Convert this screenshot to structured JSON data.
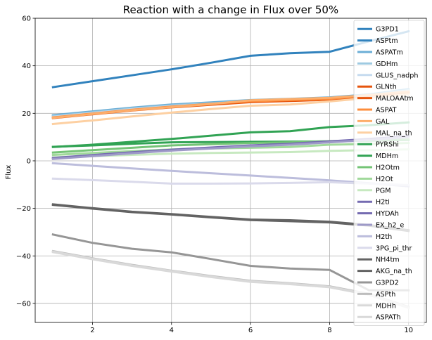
{
  "chart_data": {
    "type": "line",
    "title": "Reaction with a change in Flux over 50%",
    "xlabel": "",
    "ylabel": "Flux",
    "xlim": [
      0.55,
      10.45
    ],
    "ylim": [
      -68,
      60
    ],
    "xticks": [
      2,
      4,
      6,
      8,
      10
    ],
    "yticks": [
      -60,
      -40,
      -20,
      0,
      20,
      40,
      60
    ],
    "grid": true,
    "legend_position": "top-right",
    "x": [
      1,
      2,
      3,
      4,
      5,
      6,
      7,
      8,
      9,
      10
    ],
    "series": [
      {
        "name": "G3PD1",
        "color": "#3182bd",
        "values": [
          31,
          33.5,
          36,
          38.5,
          41.3,
          44.2,
          45.3,
          45.9,
          50.3,
          54.5
        ]
      },
      {
        "name": "ASPtm",
        "color": "#3182bd",
        "values": [
          19,
          20.6,
          22.2,
          23.5,
          24.4,
          25.4,
          25.9,
          26.5,
          27.8,
          30
        ]
      },
      {
        "name": "ASPATm",
        "color": "#6baed6",
        "values": [
          19.2,
          20.8,
          22.4,
          23.7,
          24.6,
          25.6,
          26.1,
          26.7,
          28,
          30.2
        ]
      },
      {
        "name": "GDHm",
        "color": "#9ecae1",
        "values": [
          18.8,
          20.4,
          22,
          23.3,
          24.2,
          25.2,
          25.7,
          26.3,
          27.6,
          29.8
        ]
      },
      {
        "name": "GLUS_nadph",
        "color": "#c6dbef",
        "values": [
          18.5,
          20.1,
          21.7,
          23,
          23.9,
          24.9,
          25.4,
          26,
          27.3,
          29.5
        ]
      },
      {
        "name": "GLNth",
        "color": "#e6550d",
        "values": [
          18.2,
          19.8,
          21.4,
          22.7,
          23.8,
          24.9,
          25.4,
          25.9,
          27.3,
          28.7
        ]
      },
      {
        "name": "MALOAAtm",
        "color": "#e6550d",
        "values": [
          18,
          19.6,
          21.2,
          22.5,
          23.6,
          24.7,
          25.2,
          25.7,
          27.1,
          28.5
        ]
      },
      {
        "name": "ASPAT",
        "color": "#fd8d3c",
        "values": [
          18.3,
          19.9,
          21.5,
          22.8,
          24,
          25.1,
          25.6,
          26.1,
          27.5,
          28.9
        ]
      },
      {
        "name": "GAL",
        "color": "#fdae6b",
        "values": [
          18.1,
          19.7,
          21.3,
          22.6,
          23.9,
          25.5,
          26,
          26.5,
          27.7,
          29.2
        ]
      },
      {
        "name": "MAL_na_th",
        "color": "#fdd0a2",
        "values": [
          15.5,
          17,
          18.7,
          20.3,
          21.8,
          23.2,
          23.7,
          25,
          26.5,
          28
        ]
      },
      {
        "name": "PYRShi",
        "color": "#31a354",
        "values": [
          5.8,
          6.8,
          8,
          9.2,
          10.6,
          12,
          12.5,
          14.2,
          15,
          16.2
        ]
      },
      {
        "name": "MDHm",
        "color": "#31a354",
        "values": [
          5.9,
          6.5,
          7.2,
          7.8,
          7.9,
          8,
          8.1,
          8.2,
          8.5,
          8.8
        ]
      },
      {
        "name": "H2Otm",
        "color": "#74c476",
        "values": [
          3.5,
          4.5,
          5.5,
          6.5,
          7,
          7.5,
          7.8,
          8.3,
          8.6,
          9
        ]
      },
      {
        "name": "H2Ot",
        "color": "#a1d99b",
        "values": [
          2.5,
          3.3,
          4.1,
          4.8,
          5.2,
          5.5,
          5.8,
          6.8,
          7.1,
          7.5
        ]
      },
      {
        "name": "PGM",
        "color": "#c7e9c0",
        "values": [
          1.5,
          2,
          2.5,
          3,
          3.3,
          3.5,
          3.7,
          4.2,
          4.5,
          4.8
        ]
      },
      {
        "name": "H2ti",
        "color": "#756bb1",
        "values": [
          1,
          2.2,
          3.4,
          4.5,
          5.4,
          6.3,
          7,
          8,
          9,
          10.2
        ]
      },
      {
        "name": "HYDAh",
        "color": "#756bb1",
        "values": [
          1.2,
          2.4,
          3.6,
          4.7,
          5.6,
          6.5,
          7.2,
          8.2,
          9.2,
          10.4
        ]
      },
      {
        "name": "EX_h2_e",
        "color": "#9e9ac8",
        "values": [
          0.8,
          2,
          3.2,
          4.3,
          5.2,
          6.1,
          6.8,
          7.8,
          8.8,
          10
        ]
      },
      {
        "name": "H2th",
        "color": "#bcbddc",
        "values": [
          -1,
          -2.1,
          -3.2,
          -4.2,
          -5.2,
          -6.2,
          -7.2,
          -8.2,
          -9.4,
          -10.7
        ]
      },
      {
        "name": "3PG_pi_thr",
        "color": "#dadaeb",
        "values": [
          -7.5,
          -8.1,
          -8.8,
          -9.6,
          -9.6,
          -9.5,
          -9.3,
          -9,
          -9.6,
          -10.2
        ]
      },
      {
        "name": "NH4tm",
        "color": "#636363",
        "values": [
          -18.5,
          -20.1,
          -21.6,
          -22.6,
          -23.8,
          -24.9,
          -25.4,
          -25.9,
          -27.3,
          -29.5
        ]
      },
      {
        "name": "AKG_na_th",
        "color": "#636363",
        "values": [
          -18.3,
          -19.9,
          -21.4,
          -22.4,
          -23.6,
          -24.7,
          -25,
          -25.6,
          -27,
          -29.2
        ]
      },
      {
        "name": "G3PD2",
        "color": "#969696",
        "values": [
          -31,
          -34.5,
          -37,
          -38.5,
          -41.3,
          -44.2,
          -45.3,
          -45.9,
          -54.5,
          -54.5
        ]
      },
      {
        "name": "ASPth",
        "color": "#bdbdbd",
        "values": [
          -38,
          -41,
          -43.8,
          -46.2,
          -48.5,
          -50.5,
          -51.5,
          -52.8,
          -56,
          -61.5
        ]
      },
      {
        "name": "MDHh",
        "color": "#d9d9d9",
        "values": [
          -38.2,
          -41.2,
          -44,
          -46.4,
          -48.7,
          -50.7,
          -51.7,
          -53,
          -56.2,
          -61.7
        ]
      },
      {
        "name": "ASPATh",
        "color": "#d9d9d9",
        "values": [
          -38.4,
          -41.4,
          -44.2,
          -46.6,
          -48.9,
          -50.9,
          -51.9,
          -53.2,
          -56.4,
          -61.9
        ]
      }
    ]
  }
}
